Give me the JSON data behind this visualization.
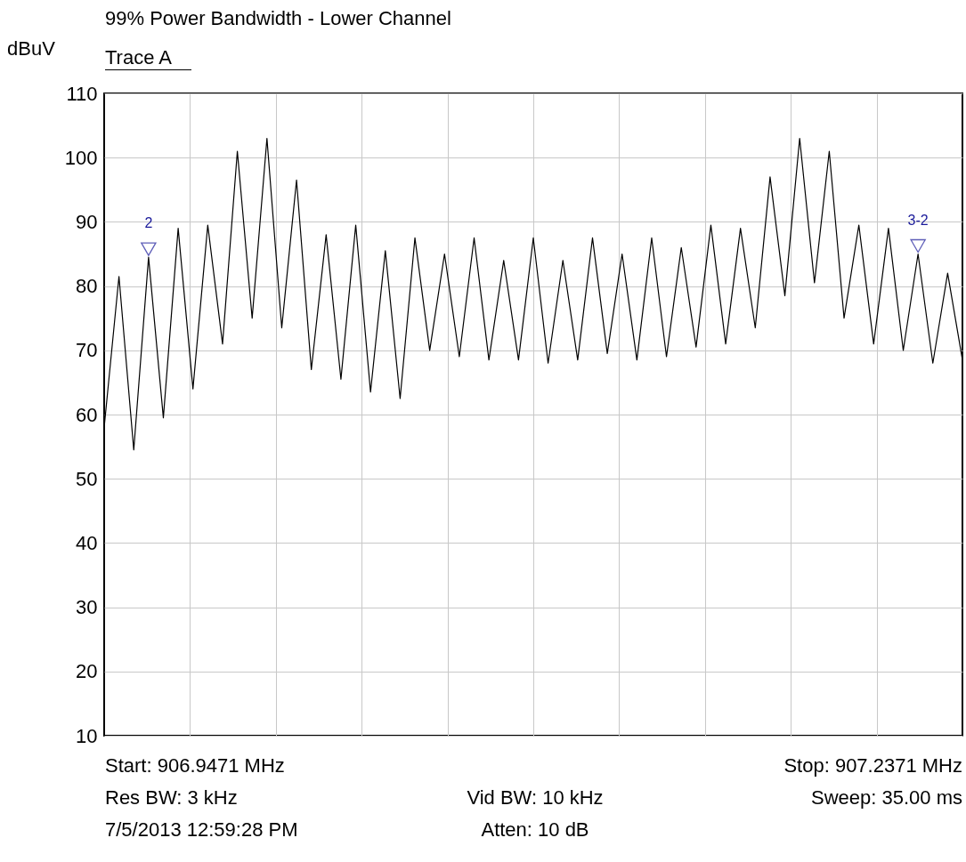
{
  "chart_data": {
    "type": "line",
    "title": "99% Power Bandwidth - Lower Channel",
    "subtitle": "Trace A",
    "ylabel": "dBuV",
    "categories": [
      null,
      null,
      null,
      null,
      null,
      null,
      null,
      null,
      null,
      null,
      null,
      null,
      null,
      null,
      null,
      null,
      null,
      null,
      null,
      null,
      null,
      null,
      null,
      null,
      null,
      null,
      null,
      null,
      null,
      null,
      null,
      null,
      null,
      null,
      null,
      null,
      null,
      null,
      null,
      null,
      null,
      null,
      null,
      null,
      null,
      null,
      null,
      null,
      null,
      null,
      null,
      null,
      null,
      null,
      null,
      null,
      null,
      null,
      null
    ],
    "series": [
      {
        "color": "#000000",
        "values": [
          58,
          81.5,
          54.5,
          84.5,
          59.5,
          89,
          64,
          89.5,
          71,
          101,
          75,
          103,
          73.5,
          96.5,
          67,
          88,
          65.5,
          89.5,
          63.5,
          85.5,
          62.5,
          87.5,
          70,
          85,
          69,
          87.5,
          68.5,
          84,
          68.5,
          87.5,
          68,
          84,
          68.5,
          87.5,
          69.5,
          85,
          68.5,
          87.5,
          69,
          86,
          70.5,
          89.5,
          71,
          89,
          73.5,
          97,
          78.5,
          103,
          80.5,
          101,
          75,
          89.5,
          71,
          89,
          70,
          85,
          68,
          82,
          68.5
        ]
      }
    ],
    "ylim": [
      10,
      110
    ],
    "yticks": [
      10,
      20,
      30,
      40,
      50,
      60,
      70,
      80,
      90,
      100,
      110
    ],
    "tick_labels": "y",
    "grid": true,
    "line_style": "solid",
    "annotations": [
      "2",
      "3-2",
      "Start: 906.9471 MHz",
      "Stop: 907.2371 MHz",
      "Res BW: 3 kHz",
      "Vid BW: 10 kHz",
      "Sweep: 35.00 ms",
      "7/5/2013 12:59:28 PM",
      "Atten: 10 dB"
    ]
  }
}
